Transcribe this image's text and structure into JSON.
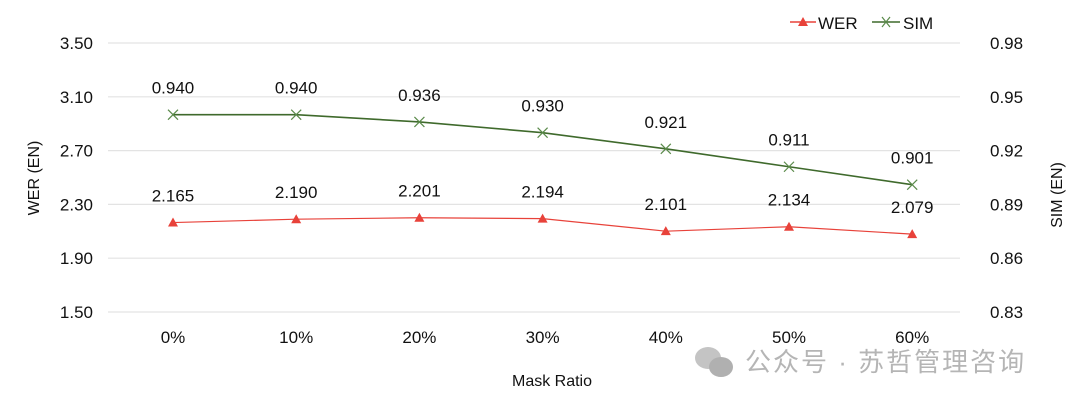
{
  "chart_data": {
    "type": "line",
    "categories": [
      "0%",
      "10%",
      "20%",
      "30%",
      "40%",
      "50%",
      "60%"
    ],
    "xlabel": "Mask Ratio",
    "ylabel": "WER (EN)",
    "y2label": "SIM (EN)",
    "ylim": [
      1.5,
      3.5
    ],
    "y2lim": [
      0.83,
      0.98
    ],
    "yticks": [
      "3.50",
      "3.10",
      "2.70",
      "2.30",
      "1.90",
      "1.50"
    ],
    "y2ticks": [
      "0.98",
      "0.95",
      "0.92",
      "0.89",
      "0.86",
      "0.83"
    ],
    "grid": true,
    "legend_position": "top-right",
    "series": [
      {
        "name": "WER",
        "axis": "left",
        "color": "#e8423a",
        "marker": "triangle",
        "values": [
          2.165,
          2.19,
          2.201,
          2.194,
          2.101,
          2.134,
          2.079
        ],
        "labels": [
          "2.165",
          "2.190",
          "2.201",
          "2.194",
          "2.101",
          "2.134",
          "2.079"
        ]
      },
      {
        "name": "SIM",
        "axis": "right",
        "color": "#3f6a2c",
        "marker": "x",
        "values": [
          0.94,
          0.94,
          0.936,
          0.93,
          0.921,
          0.911,
          0.901
        ],
        "labels": [
          "0.940",
          "0.940",
          "0.936",
          "0.930",
          "0.921",
          "0.911",
          "0.901"
        ]
      }
    ]
  },
  "watermark": {
    "text": "公众号 · 苏哲管理咨询",
    "icon": "wechat-icon"
  }
}
